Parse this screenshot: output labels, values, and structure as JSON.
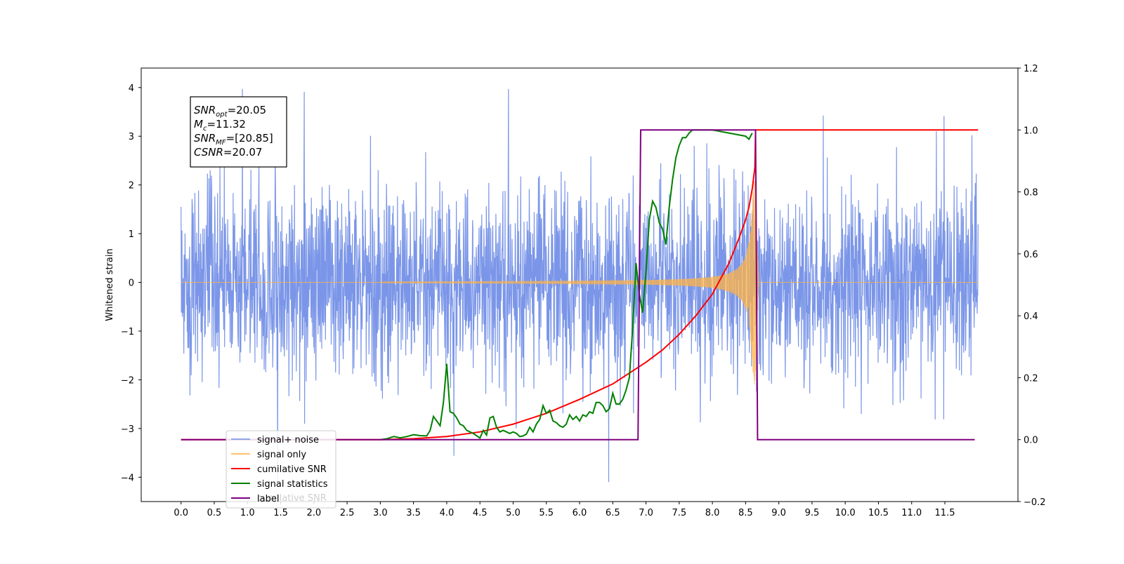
{
  "chart_data": {
    "type": "line",
    "ylabel": "Whitened strain",
    "xlim": [
      -0.6,
      12.6
    ],
    "ylim_left": [
      -4.5,
      4.4
    ],
    "ylim_right": [
      -0.2,
      1.2
    ],
    "x_ticks": [
      0.0,
      0.5,
      1.0,
      1.5,
      2.0,
      2.5,
      3.0,
      3.5,
      4.0,
      4.5,
      5.0,
      5.5,
      6.0,
      6.5,
      7.0,
      7.5,
      8.0,
      8.5,
      9.0,
      9.5,
      10.0,
      10.5,
      11.0,
      11.5
    ],
    "x_tick_labels": [
      "0.0",
      "0.5",
      "1.0",
      "1.5",
      "2.0",
      "2.5",
      "3.0",
      "3.5",
      "4.0",
      "4.5",
      "5.0",
      "5.5",
      "6.0",
      "6.5",
      "7.0",
      "7.5",
      "8.0",
      "8.5",
      "9.0",
      "9.5",
      "10.0",
      "10.5",
      "11.0",
      "11.5"
    ],
    "y_left_ticks": [
      -4,
      -3,
      -2,
      -1,
      0,
      1,
      2,
      3,
      4
    ],
    "y_left_tick_labels": [
      "−4",
      "−3",
      "−2",
      "−1",
      "0",
      "1",
      "2",
      "3",
      "4"
    ],
    "y_right_ticks": [
      -0.2,
      0.0,
      0.2,
      0.4,
      0.6,
      0.8,
      1.0,
      1.2
    ],
    "y_right_tick_labels": [
      "−0.2",
      "0.0",
      "0.2",
      "0.4",
      "0.6",
      "0.8",
      "1.0",
      "1.2"
    ],
    "grid": false,
    "legend_placement": "lower-left",
    "annotation": [
      {
        "name": "SNR",
        "sub": "opt",
        "value": "=20.05"
      },
      {
        "name": "M",
        "sub": "c",
        "value": "=11.32"
      },
      {
        "name": "SNR",
        "sub": "MF",
        "value": "=[20.85]"
      },
      {
        "name": "CSNR",
        "sub": "",
        "value": "=20.07"
      }
    ],
    "series": [
      {
        "name": "signal+ noise",
        "axis": "left",
        "color": "#7b96e8",
        "x_range": [
          0.0,
          12.0
        ],
        "amplitude_typical": 1.7,
        "peak_max": 3.97,
        "peak_min": -4.1
      },
      {
        "name": "signal only",
        "axis": "left",
        "color": "#ffb347",
        "x_range": [
          0.0,
          12.0
        ],
        "chirp_start": 3.0,
        "merger_x": 8.65,
        "peak_amplitude": 2.1
      },
      {
        "name": "cumilative SNR",
        "axis": "right",
        "color": "#ff0000",
        "x": [
          0.0,
          3.0,
          3.5,
          4.0,
          4.5,
          5.0,
          5.5,
          6.0,
          6.5,
          7.0,
          7.25,
          7.5,
          7.75,
          8.0,
          8.25,
          8.4,
          8.5,
          8.55,
          8.6,
          8.64,
          8.65,
          12.0
        ],
        "y": [
          0.0,
          0.0,
          0.003,
          0.01,
          0.025,
          0.05,
          0.085,
          0.13,
          0.18,
          0.25,
          0.29,
          0.34,
          0.4,
          0.47,
          0.57,
          0.65,
          0.71,
          0.75,
          0.81,
          0.88,
          1.0,
          1.0
        ]
      },
      {
        "name": "signal statistics",
        "axis": "right",
        "color": "#008000",
        "x": [
          3.0,
          3.1,
          3.2,
          3.3,
          3.4,
          3.5,
          3.6,
          3.7,
          3.75,
          3.8,
          3.85,
          3.9,
          3.95,
          4.0,
          4.05,
          4.1,
          4.15,
          4.2,
          4.25,
          4.3,
          4.4,
          4.5,
          4.55,
          4.6,
          4.65,
          4.7,
          4.75,
          4.8,
          4.85,
          4.9,
          4.95,
          5.0,
          5.05,
          5.1,
          5.15,
          5.2,
          5.25,
          5.3,
          5.35,
          5.4,
          5.45,
          5.5,
          5.55,
          5.6,
          5.65,
          5.7,
          5.75,
          5.8,
          5.85,
          5.9,
          5.95,
          6.0,
          6.05,
          6.1,
          6.15,
          6.2,
          6.25,
          6.3,
          6.35,
          6.4,
          6.45,
          6.5,
          6.55,
          6.6,
          6.65,
          6.7,
          6.75,
          6.8,
          6.85,
          6.9,
          6.95,
          7.0,
          7.05,
          7.1,
          7.15,
          7.2,
          7.25,
          7.3,
          7.35,
          7.4,
          7.45,
          7.5,
          7.55,
          7.6,
          7.65,
          7.7,
          7.75,
          7.8,
          7.9,
          8.0,
          8.5,
          8.55,
          8.6
        ],
        "y": [
          0.0,
          0.003,
          0.01,
          0.006,
          0.01,
          0.016,
          0.013,
          0.012,
          0.03,
          0.075,
          0.06,
          0.045,
          0.12,
          0.245,
          0.09,
          0.085,
          0.07,
          0.05,
          0.045,
          0.03,
          0.02,
          0.005,
          0.03,
          0.015,
          0.07,
          0.075,
          0.04,
          0.025,
          0.03,
          0.025,
          0.02,
          0.025,
          0.02,
          0.01,
          0.012,
          0.018,
          0.04,
          0.025,
          0.05,
          0.065,
          0.11,
          0.085,
          0.095,
          0.06,
          0.055,
          0.045,
          0.04,
          0.05,
          0.08,
          0.065,
          0.075,
          0.06,
          0.08,
          0.075,
          0.09,
          0.085,
          0.12,
          0.12,
          0.11,
          0.09,
          0.1,
          0.15,
          0.115,
          0.115,
          0.13,
          0.16,
          0.2,
          0.36,
          0.57,
          0.47,
          0.41,
          0.54,
          0.71,
          0.77,
          0.75,
          0.7,
          0.68,
          0.63,
          0.75,
          0.84,
          0.91,
          0.95,
          0.975,
          0.975,
          0.99,
          1.0,
          1.0,
          1.0,
          1.0,
          1.0,
          0.98,
          0.97,
          0.99
        ]
      },
      {
        "name": "label",
        "axis": "right",
        "color": "#800080",
        "x": [
          0.0,
          6.88,
          6.92,
          8.65,
          8.68,
          11.95
        ],
        "y": [
          0.0,
          0.0,
          1.0,
          1.0,
          0.0,
          0.0
        ]
      }
    ],
    "legend_ghost_text": "cumilative SNR"
  }
}
